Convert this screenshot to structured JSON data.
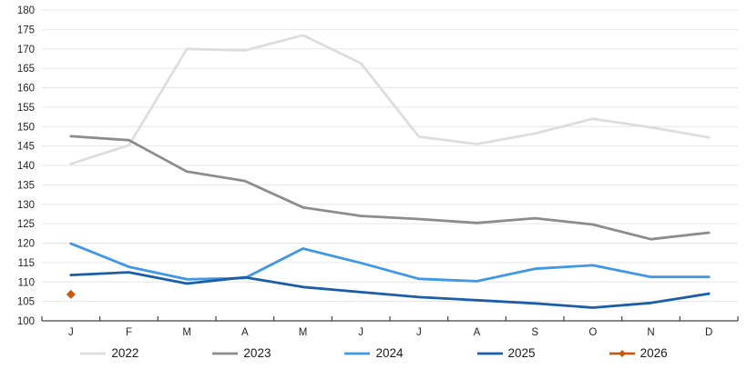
{
  "chart_data": {
    "type": "line",
    "title": "",
    "x_labels": [
      "J",
      "F",
      "M",
      "A",
      "M",
      "J",
      "J",
      "A",
      "S",
      "O",
      "N",
      "D"
    ],
    "y_ticks": [
      100,
      105,
      110,
      115,
      120,
      125,
      130,
      135,
      140,
      145,
      150,
      155,
      160,
      165,
      170,
      175,
      180
    ],
    "ylim": [
      100,
      180
    ],
    "grid": true,
    "legend_position": "bottom",
    "series": [
      {
        "name": "2022",
        "color": "#DDDDDD",
        "values": [
          140.4,
          145.2,
          170,
          169.6,
          173.5,
          166.3,
          147.4,
          145.5,
          148.2,
          152,
          149.8,
          147.2
        ]
      },
      {
        "name": "2023",
        "color": "#8C8C8C",
        "values": [
          147.5,
          146.5,
          138.4,
          136,
          129.2,
          127,
          126.2,
          125.2,
          126.4,
          124.8,
          121,
          122.7
        ]
      },
      {
        "name": "2024",
        "color": "#3F97E6",
        "values": [
          119.9,
          113.9,
          110.7,
          111,
          118.6,
          114.9,
          110.8,
          110.2,
          113.4,
          114.3,
          111.3,
          111.3
        ]
      },
      {
        "name": "2025",
        "color": "#1B5EA8",
        "values": [
          111.8,
          112.5,
          109.6,
          111.2,
          108.7,
          107.4,
          106.1,
          105.3,
          104.5,
          103.4,
          104.6,
          107
        ]
      },
      {
        "name": "2026",
        "color": "#C55A11",
        "marker": "diamond",
        "values": [
          106.8,
          null,
          null,
          null,
          null,
          null,
          null,
          null,
          null,
          null,
          null,
          null
        ]
      }
    ],
    "colors": {
      "gridline": "#E6E6E6",
      "axis": "#404040",
      "tick_label": "#262626"
    }
  }
}
